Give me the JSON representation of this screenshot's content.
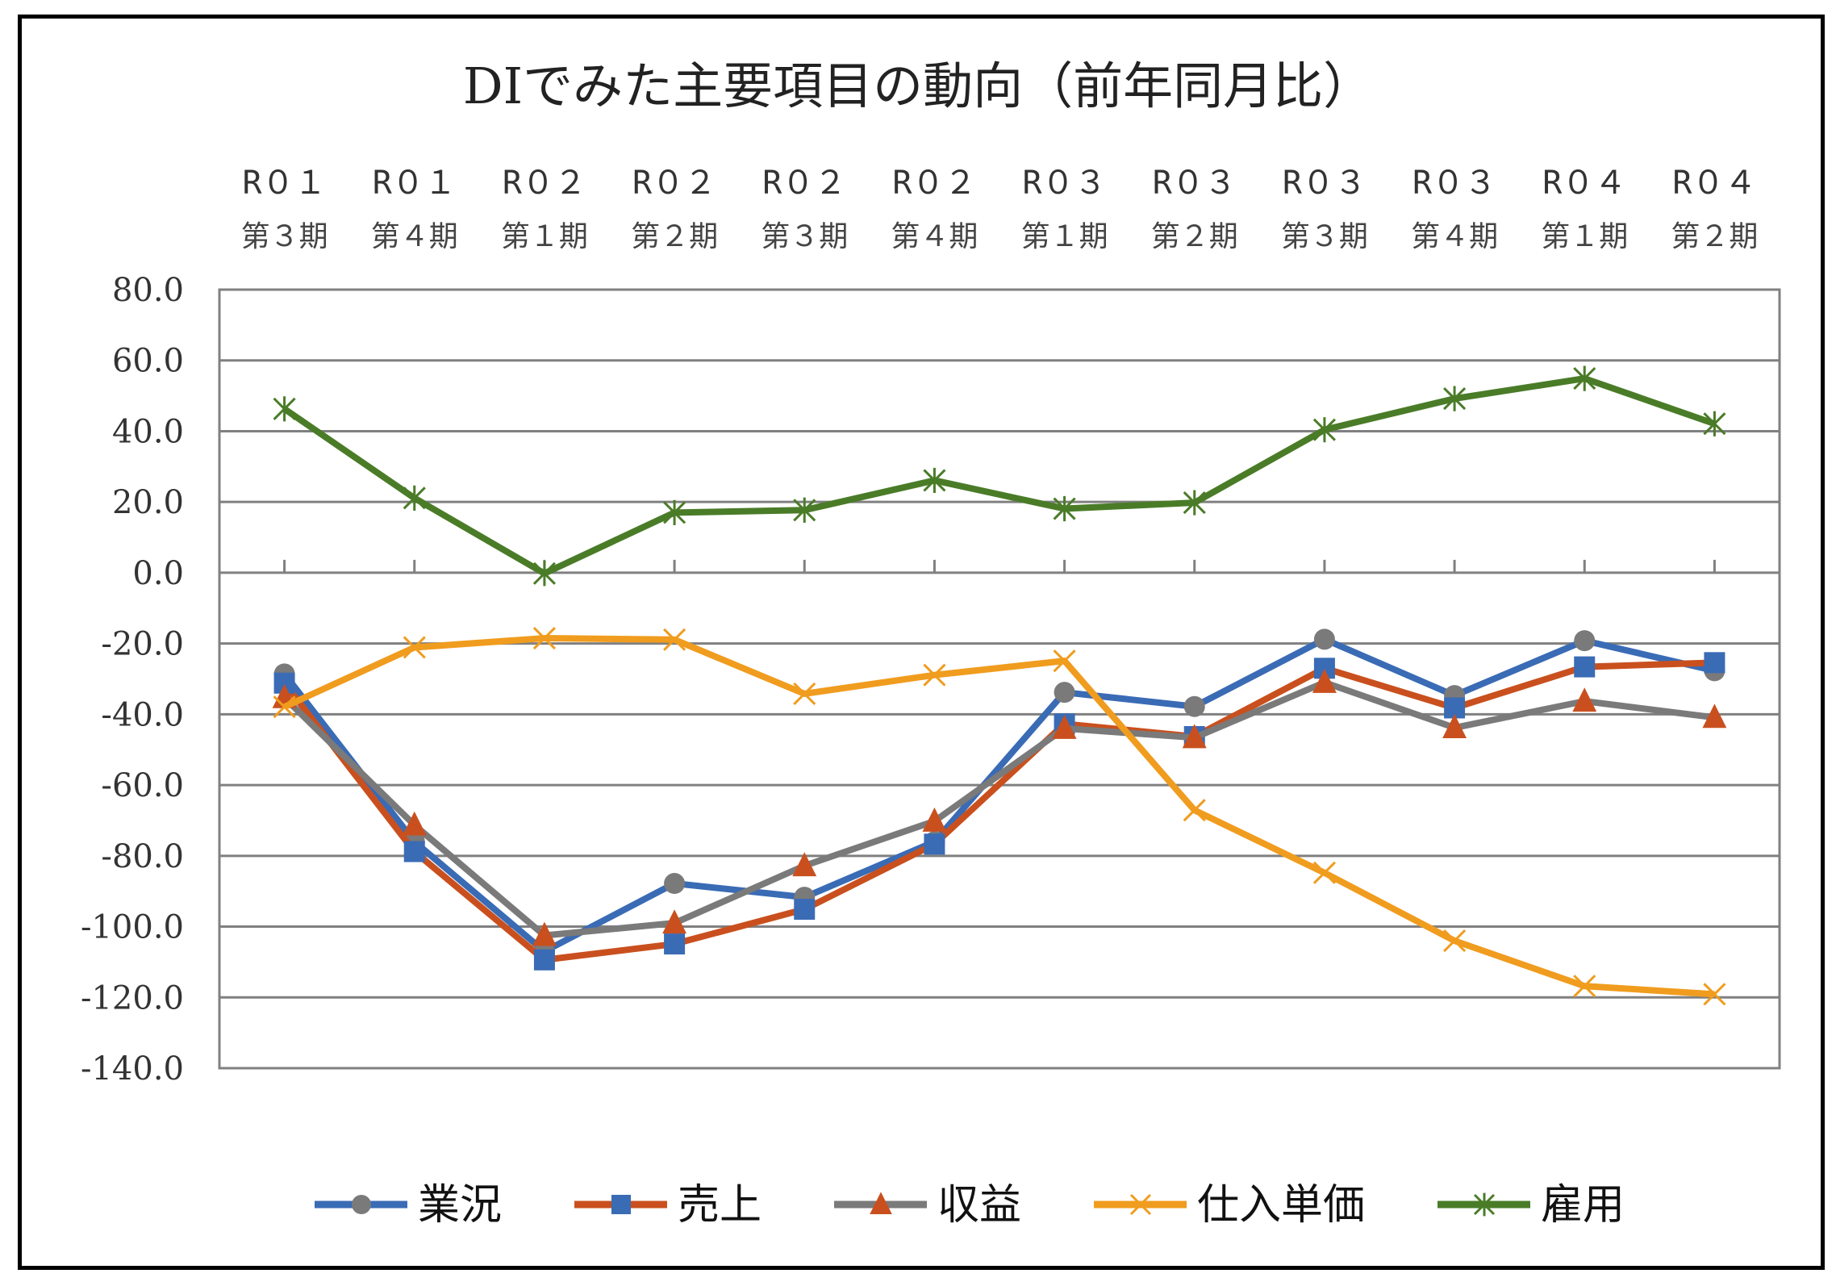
{
  "chart_data": {
    "type": "line",
    "title": "DIでみた主要項目の動向（前年同月比）",
    "xlabel": "",
    "ylabel": "",
    "ylim": [
      -140,
      80
    ],
    "ytick_step": 20,
    "ytick_labels": [
      "80.0",
      "60.0",
      "40.0",
      "20.0",
      "0.0",
      "-20.0",
      "-40.0",
      "-60.0",
      "-80.0",
      "-100.0",
      "-120.0",
      "-140.0"
    ],
    "grid": true,
    "legend_position": "bottom",
    "categories": [
      {
        "year": "R０１",
        "period": "第３期"
      },
      {
        "year": "R０１",
        "period": "第４期"
      },
      {
        "year": "R０２",
        "period": "第１期"
      },
      {
        "year": "R０２",
        "period": "第２期"
      },
      {
        "year": "R０２",
        "period": "第３期"
      },
      {
        "year": "R０２",
        "period": "第４期"
      },
      {
        "year": "R０３",
        "period": "第１期"
      },
      {
        "year": "R０３",
        "period": "第２期"
      },
      {
        "year": "R０３",
        "period": "第３期"
      },
      {
        "year": "R０３",
        "period": "第４期"
      },
      {
        "year": "R０４",
        "period": "第１期"
      },
      {
        "year": "R０４",
        "period": "第２期"
      }
    ],
    "series": [
      {
        "name": "業況",
        "line_color": "#3a6bb5",
        "marker": "circle",
        "marker_color": "#7a7a7a",
        "values": [
          -28.6,
          -76.0,
          -107.0,
          -87.8,
          -91.7,
          -76.0,
          -33.8,
          -37.8,
          -18.8,
          -34.7,
          -19.2,
          -27.7
        ]
      },
      {
        "name": "売上",
        "line_color": "#c9501e",
        "marker": "square",
        "marker_color": "#3a6bb5",
        "values": [
          -31.2,
          -78.8,
          -109.4,
          -104.9,
          -95.1,
          -76.7,
          -42.7,
          -46.3,
          -27.0,
          -38.2,
          -26.6,
          -25.4
        ]
      },
      {
        "name": "収益",
        "line_color": "#7a7a7a",
        "marker": "triangle",
        "marker_color": "#c9501e",
        "values": [
          -35.3,
          -71.3,
          -102.5,
          -99.0,
          -82.8,
          -70.2,
          -44.0,
          -46.6,
          -31.0,
          -43.8,
          -36.3,
          -40.9
        ]
      },
      {
        "name": "仕入単価",
        "line_color": "#f09c1e",
        "marker": "x",
        "marker_color": "#f09c1e",
        "values": [
          -37.9,
          -21.1,
          -18.5,
          -18.9,
          -34.2,
          -28.9,
          -24.9,
          -67.1,
          -84.8,
          -104.0,
          -116.8,
          -119.1
        ]
      },
      {
        "name": "雇用",
        "line_color": "#4a7c28",
        "marker": "star",
        "marker_color": "#4a7c28",
        "values": [
          46.3,
          21.1,
          -0.2,
          17.0,
          17.7,
          26.1,
          18.1,
          19.8,
          40.4,
          49.2,
          54.9,
          42.1
        ]
      }
    ]
  }
}
